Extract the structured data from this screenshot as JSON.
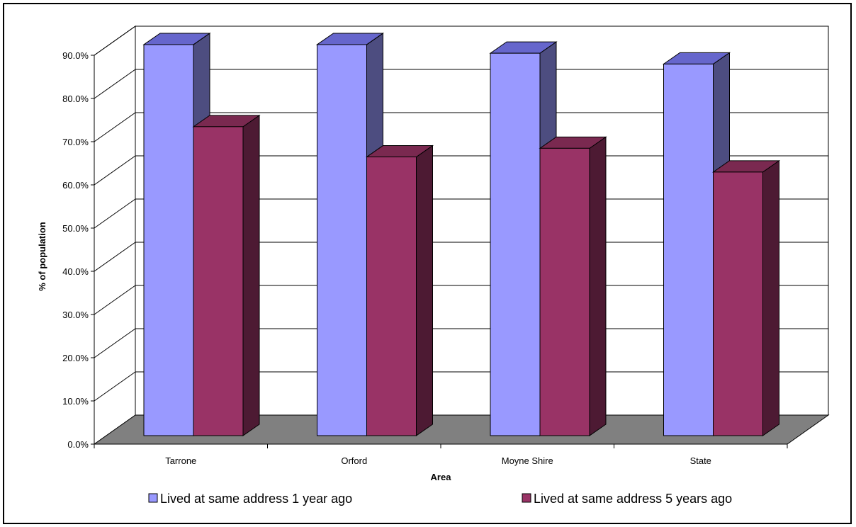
{
  "chart_data": {
    "type": "bar",
    "title": "",
    "xlabel": "Area",
    "ylabel": "% of population",
    "categories": [
      "Tarrone",
      "Orford",
      "Moyne Shire",
      "State"
    ],
    "series": [
      {
        "name": "Lived at same address 1 year ago",
        "values": [
          90.5,
          90.5,
          88.5,
          86.0
        ],
        "color": "#9999ff"
      },
      {
        "name": "Lived at same address 5 years ago",
        "values": [
          71.5,
          64.5,
          66.5,
          61.0
        ],
        "color": "#993366"
      }
    ],
    "ylim": [
      0,
      90
    ],
    "yticks": [
      "0.0%",
      "10.0%",
      "20.0%",
      "30.0%",
      "40.0%",
      "50.0%",
      "60.0%",
      "70.0%",
      "80.0%",
      "90.0%"
    ],
    "grid": true,
    "legend": "bottom",
    "colors": {
      "floor": "#808080",
      "series1_top": "#6666cc",
      "series1_side": "#4d4d80",
      "series2_top": "#7a2950",
      "series2_side": "#4d1a33"
    }
  }
}
